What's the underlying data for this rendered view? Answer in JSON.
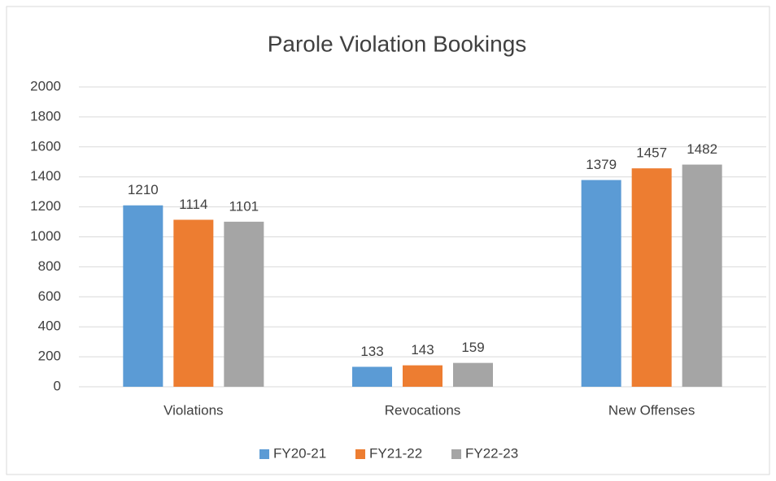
{
  "chart_data": {
    "type": "bar",
    "title": "Parole Violation Bookings",
    "categories": [
      "Violations",
      "Revocations",
      "New Offenses"
    ],
    "series": [
      {
        "name": "FY20-21",
        "color": "#5b9bd5",
        "values": [
          1210,
          133,
          1379
        ]
      },
      {
        "name": "FY21-22",
        "color": "#ed7d31",
        "values": [
          1114,
          143,
          1457
        ]
      },
      {
        "name": "FY22-23",
        "color": "#a5a5a5",
        "values": [
          1101,
          159,
          1482
        ]
      }
    ],
    "ylim": [
      0,
      2000
    ],
    "yticks": [
      0,
      200,
      400,
      600,
      800,
      1000,
      1200,
      1400,
      1600,
      1800,
      2000
    ],
    "grid": true,
    "legend": "bottom"
  }
}
